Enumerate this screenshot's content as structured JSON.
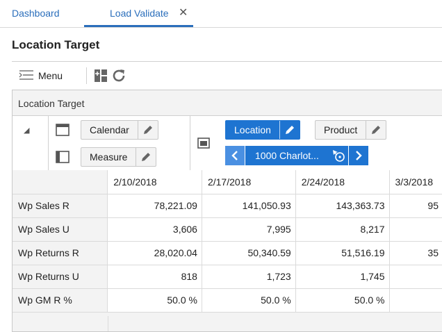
{
  "tabs": [
    {
      "label": "Dashboard"
    },
    {
      "label": "Load Validate"
    }
  ],
  "tab_close_glyph": "✕",
  "page": {
    "title": "Location Target"
  },
  "toolbar": {
    "menu_label": "Menu",
    "icons": [
      "menu-icon",
      "layout-toggle-icon",
      "refresh-icon"
    ]
  },
  "panel": {
    "title": "Location Target"
  },
  "pivot": {
    "rows_area": {
      "calendar_label": "Calendar",
      "measure_label": "Measure"
    },
    "columns_area": {
      "location_label": "Location",
      "product_label": "Product"
    },
    "location_nav": {
      "current": "1000 Charlot..."
    }
  },
  "grid": {
    "columns": [
      "2/10/2018",
      "2/17/2018",
      "2/24/2018",
      "3/3/2018"
    ],
    "rows": [
      {
        "label": "Wp Sales R",
        "values": [
          "78,221.09",
          "141,050.93",
          "143,363.73",
          "95"
        ]
      },
      {
        "label": "Wp Sales U",
        "values": [
          "3,606",
          "7,995",
          "8,217",
          ""
        ]
      },
      {
        "label": "Wp Returns R",
        "values": [
          "28,020.04",
          "50,340.59",
          "51,516.19",
          "35"
        ]
      },
      {
        "label": "Wp Returns U",
        "values": [
          "818",
          "1,723",
          "1,745",
          ""
        ]
      },
      {
        "label": "Wp GM R %",
        "values": [
          "50.0 %",
          "50.0 %",
          "50.0 %",
          ""
        ]
      }
    ]
  },
  "colors": {
    "accent": "#1e74d1",
    "link": "#2a6ebb",
    "panel_bg": "#f3f3f3"
  }
}
